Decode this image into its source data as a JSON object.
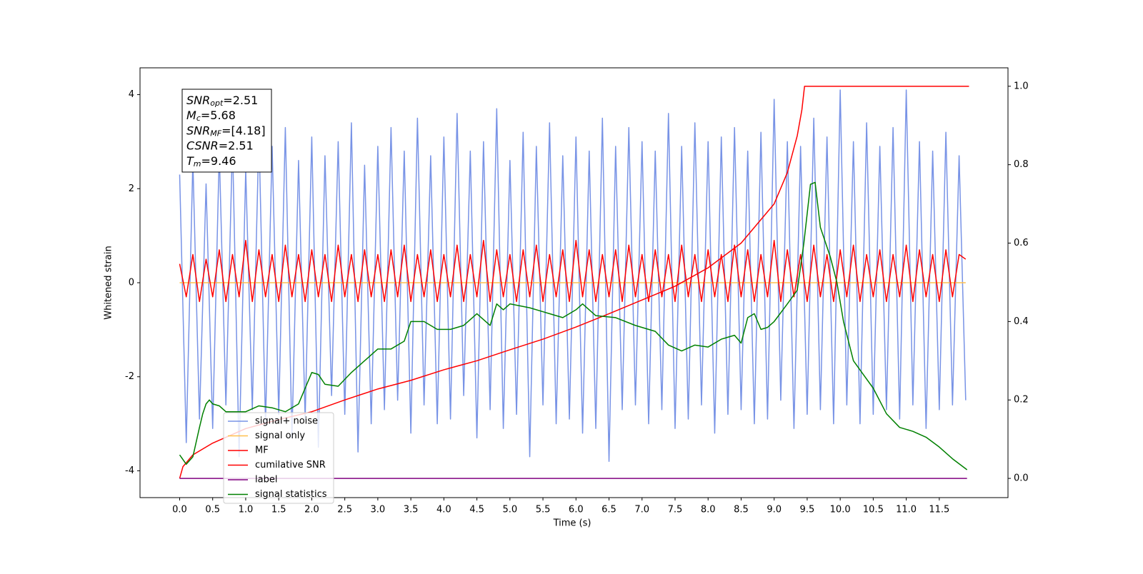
{
  "chart_data": {
    "type": "line",
    "xlabel": "Time (s)",
    "ylabel": "Whitened strain",
    "xlim": [
      -0.6,
      12.54
    ],
    "ylim": [
      -4.57,
      4.57
    ],
    "y2lim": [
      -0.049,
      1.047
    ],
    "xticks": [
      {
        "value": 0,
        "label": "0.0"
      },
      {
        "value": 0.5,
        "label": "0.5"
      },
      {
        "value": 1,
        "label": "1.0"
      },
      {
        "value": 1.5,
        "label": "1.5"
      },
      {
        "value": 2,
        "label": "2.0"
      },
      {
        "value": 2.5,
        "label": "2.5"
      },
      {
        "value": 3,
        "label": "3.0"
      },
      {
        "value": 3.5,
        "label": "3.5"
      },
      {
        "value": 4,
        "label": "4.0"
      },
      {
        "value": 4.5,
        "label": "4.5"
      },
      {
        "value": 5,
        "label": "5.0"
      },
      {
        "value": 5.5,
        "label": "5.5"
      },
      {
        "value": 6,
        "label": "6.0"
      },
      {
        "value": 6.5,
        "label": "6.5"
      },
      {
        "value": 7,
        "label": "7.0"
      },
      {
        "value": 7.5,
        "label": "7.5"
      },
      {
        "value": 8,
        "label": "8.0"
      },
      {
        "value": 8.5,
        "label": "8.5"
      },
      {
        "value": 9,
        "label": "9.0"
      },
      {
        "value": 9.5,
        "label": "9.5"
      },
      {
        "value": 10,
        "label": "10.0"
      },
      {
        "value": 10.5,
        "label": "10.5"
      },
      {
        "value": 11,
        "label": "11.0"
      },
      {
        "value": 11.5,
        "label": "11.5"
      }
    ],
    "yticks": [
      -4,
      -2,
      0,
      2,
      4
    ],
    "y2ticks": [
      {
        "value": 0,
        "label": "0.0"
      },
      {
        "value": 0.2,
        "label": "0.2"
      },
      {
        "value": 0.4,
        "label": "0.4"
      },
      {
        "value": 0.6,
        "label": "0.6"
      },
      {
        "value": 0.8,
        "label": "0.8"
      },
      {
        "value": 1,
        "label": "1.0"
      }
    ],
    "legend": "lower left",
    "annotations": [
      {
        "symbol": "SNR",
        "subscript": "opt",
        "text": "=2.51"
      },
      {
        "symbol": "M",
        "subscript": "c",
        "text": "=5.68"
      },
      {
        "symbol": "SNR",
        "subscript": "MF",
        "text": "=[4.18]"
      },
      {
        "symbol": "CSNR",
        "text": "=2.51"
      },
      {
        "symbol": "T",
        "subscript": "m",
        "text": "=9.46"
      }
    ],
    "x": [
      0,
      0.1,
      0.2,
      0.3,
      0.4,
      0.5,
      0.6,
      0.7,
      0.8,
      0.9,
      1,
      1.1,
      1.2,
      1.3,
      1.4,
      1.5,
      1.6,
      1.7,
      1.8,
      1.9,
      2,
      2.1,
      2.2,
      2.3,
      2.4,
      2.5,
      2.6,
      2.7,
      2.8,
      2.9,
      3,
      3.1,
      3.2,
      3.3,
      3.4,
      3.5,
      3.6,
      3.7,
      3.8,
      3.9,
      4,
      4.1,
      4.2,
      4.3,
      4.4,
      4.5,
      4.6,
      4.7,
      4.8,
      4.9,
      5,
      5.1,
      5.2,
      5.3,
      5.4,
      5.5,
      5.6,
      5.7,
      5.8,
      5.9,
      6,
      6.1,
      6.2,
      6.3,
      6.4,
      6.5,
      6.6,
      6.7,
      6.8,
      6.9,
      7,
      7.1,
      7.2,
      7.3,
      7.4,
      7.5,
      7.6,
      7.7,
      7.8,
      7.9,
      8,
      8.1,
      8.2,
      8.3,
      8.4,
      8.5,
      8.6,
      8.7,
      8.8,
      8.9,
      9,
      9.1,
      9.2,
      9.3,
      9.4,
      9.5,
      9.6,
      9.7,
      9.8,
      9.9,
      10,
      10.1,
      10.2,
      10.3,
      10.4,
      10.5,
      10.6,
      10.7,
      10.8,
      10.9,
      11,
      11.1,
      11.2,
      11.3,
      11.4,
      11.5,
      11.6,
      11.7,
      11.8,
      11.9
    ],
    "series": [
      {
        "name": "signal+ noise",
        "color": "#7893e6",
        "values": [
          2.3,
          -3.4,
          2.6,
          -2.9,
          2.1,
          -3.1,
          2.8,
          -2.6,
          3.0,
          -3.7,
          2.4,
          -2.7,
          3.2,
          -3.0,
          2.9,
          -2.8,
          3.3,
          -3.3,
          2.6,
          -2.9,
          3.1,
          -3.5,
          2.7,
          -2.4,
          3.0,
          -2.8,
          3.4,
          -3.6,
          2.5,
          -3.0,
          2.9,
          -2.7,
          3.3,
          -2.5,
          2.8,
          -3.2,
          3.5,
          -2.6,
          2.7,
          -3.0,
          3.1,
          -2.9,
          3.6,
          -2.4,
          2.8,
          -3.3,
          3.0,
          -2.7,
          3.7,
          -3.1,
          2.6,
          -2.8,
          3.2,
          -3.7,
          2.9,
          -2.6,
          3.4,
          -3.0,
          2.7,
          -2.9,
          3.1,
          -3.2,
          2.8,
          -3.1,
          3.5,
          -3.8,
          2.9,
          -2.7,
          3.3,
          -2.6,
          3.0,
          -3.0,
          2.8,
          -2.7,
          3.6,
          -3.1,
          2.9,
          -2.9,
          3.4,
          -2.6,
          3.0,
          -3.2,
          3.1,
          -2.8,
          3.3,
          -2.7,
          2.8,
          -3.0,
          3.2,
          -2.9,
          3.9,
          -2.5,
          3.0,
          -3.1,
          2.9,
          -2.8,
          3.5,
          -2.7,
          3.1,
          -3.0,
          4.1,
          -2.6,
          3.0,
          -3.0,
          3.4,
          -2.8,
          2.9,
          -2.7,
          3.3,
          -2.9,
          4.1,
          -2.6,
          3.0,
          -3.1,
          2.8,
          -2.7,
          3.2,
          -2.6,
          2.7,
          -2.5
        ]
      },
      {
        "name": "signal only",
        "color": "#ffc04d",
        "x": [
          0,
          11.9
        ],
        "values": [
          0,
          0
        ]
      },
      {
        "name": "MF",
        "color": "#ff0000",
        "values": [
          0.4,
          -0.3,
          0.6,
          -0.4,
          0.5,
          -0.3,
          0.7,
          -0.4,
          0.6,
          -0.3,
          0.9,
          -0.4,
          0.7,
          -0.3,
          0.6,
          -0.4,
          0.8,
          -0.3,
          0.6,
          -0.4,
          0.7,
          -0.3,
          0.6,
          -0.4,
          0.8,
          -0.3,
          0.6,
          -0.4,
          0.7,
          -0.3,
          0.6,
          -0.4,
          0.7,
          -0.3,
          0.8,
          -0.4,
          0.6,
          -0.3,
          0.7,
          -0.4,
          0.6,
          -0.3,
          0.8,
          -0.4,
          0.6,
          -0.3,
          0.9,
          -0.4,
          0.7,
          -0.3,
          0.6,
          -0.4,
          0.7,
          -0.3,
          0.8,
          -0.4,
          0.6,
          -0.3,
          0.7,
          -0.4,
          0.9,
          -0.3,
          0.7,
          -0.4,
          0.6,
          -0.3,
          0.7,
          -0.4,
          0.8,
          -0.3,
          0.6,
          -0.4,
          0.7,
          -0.3,
          0.6,
          -0.4,
          0.8,
          -0.3,
          0.6,
          -0.4,
          0.7,
          -0.3,
          0.6,
          -0.4,
          0.8,
          -0.3,
          0.7,
          -0.4,
          0.6,
          -0.3,
          0.9,
          -0.4,
          0.7,
          -0.3,
          0.6,
          -0.4,
          0.8,
          -0.3,
          0.6,
          -0.4,
          0.7,
          -0.3,
          0.8,
          -0.4,
          0.6,
          -0.3,
          0.7,
          -0.4,
          0.6,
          -0.3,
          0.8,
          -0.4,
          0.7,
          -0.3,
          0.6,
          -0.4,
          0.7,
          -0.3,
          0.6,
          0.5
        ]
      },
      {
        "name": "cumilative SNR",
        "color": "#ff0000",
        "axis": "y2",
        "x": [
          0,
          0.05,
          0.2,
          0.5,
          1,
          1.5,
          2,
          2.5,
          3,
          3.5,
          4,
          4.5,
          5,
          5.5,
          6,
          6.5,
          7,
          7.5,
          8,
          8.5,
          9,
          9.2,
          9.35,
          9.42,
          9.46,
          10,
          11,
          11.95
        ],
        "values": [
          0,
          0.03,
          0.06,
          0.09,
          0.127,
          0.15,
          0.17,
          0.2,
          0.228,
          0.25,
          0.277,
          0.3,
          0.328,
          0.355,
          0.386,
          0.42,
          0.455,
          0.49,
          0.537,
          0.6,
          0.7,
          0.78,
          0.874,
          0.94,
          1,
          1,
          1,
          1
        ]
      },
      {
        "name": "label",
        "color": "#800080",
        "axis": "y2",
        "x": [
          0,
          11.92
        ],
        "values": [
          0,
          0
        ]
      },
      {
        "name": "signal statistics",
        "color": "#008000",
        "axis": "y2",
        "x": [
          0,
          0.1,
          0.2,
          0.3,
          0.35,
          0.4,
          0.45,
          0.5,
          0.6,
          0.7,
          0.8,
          1,
          1.2,
          1.4,
          1.6,
          1.8,
          1.9,
          2,
          2.1,
          2.2,
          2.4,
          2.6,
          2.8,
          3,
          3.2,
          3.4,
          3.5,
          3.7,
          3.9,
          4.1,
          4.3,
          4.5,
          4.7,
          4.8,
          4.9,
          5,
          5.3,
          5.6,
          5.8,
          6,
          6.1,
          6.3,
          6.6,
          6.9,
          7.2,
          7.4,
          7.6,
          7.8,
          8,
          8.2,
          8.4,
          8.5,
          8.6,
          8.7,
          8.8,
          8.9,
          9,
          9.2,
          9.35,
          9.45,
          9.55,
          9.62,
          9.7,
          9.85,
          9.95,
          10.05,
          10.2,
          10.35,
          10.5,
          10.7,
          10.9,
          11.1,
          11.3,
          11.5,
          11.7,
          11.92
        ],
        "values": [
          0.06,
          0.036,
          0.055,
          0.13,
          0.165,
          0.19,
          0.2,
          0.19,
          0.185,
          0.17,
          0.17,
          0.17,
          0.185,
          0.18,
          0.17,
          0.19,
          0.23,
          0.27,
          0.265,
          0.24,
          0.235,
          0.27,
          0.3,
          0.33,
          0.33,
          0.35,
          0.4,
          0.4,
          0.38,
          0.38,
          0.39,
          0.42,
          0.39,
          0.445,
          0.43,
          0.445,
          0.435,
          0.42,
          0.41,
          0.43,
          0.445,
          0.415,
          0.41,
          0.39,
          0.375,
          0.34,
          0.325,
          0.34,
          0.335,
          0.355,
          0.365,
          0.345,
          0.41,
          0.42,
          0.38,
          0.385,
          0.4,
          0.445,
          0.48,
          0.6,
          0.75,
          0.755,
          0.64,
          0.565,
          0.5,
          0.4,
          0.3,
          0.265,
          0.23,
          0.165,
          0.13,
          0.12,
          0.105,
          0.08,
          0.05,
          0.022
        ]
      }
    ]
  }
}
